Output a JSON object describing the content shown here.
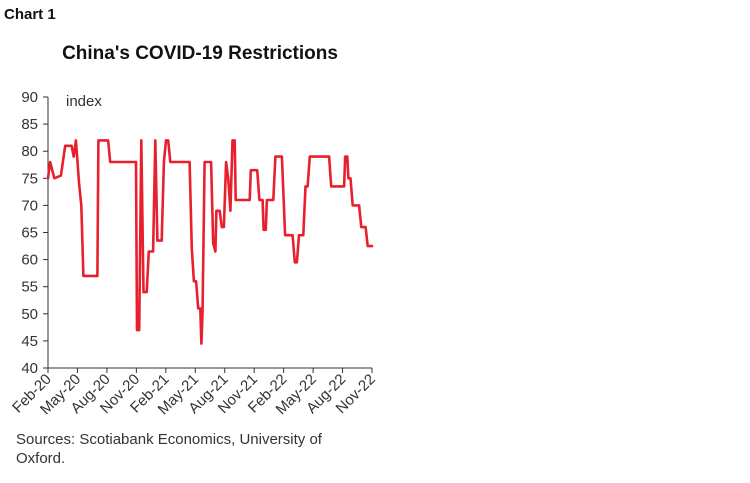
{
  "header": {
    "chart_label": "Chart 1",
    "title": "China's COVID-19 Restrictions"
  },
  "footer": {
    "sources": "Sources: Scotiabank Economics, University of Oxford."
  },
  "colors": {
    "line": "#e8202e",
    "axis": "#333333"
  },
  "chart_data": {
    "type": "line",
    "title": "China's COVID-19 Restrictions",
    "xlabel": "",
    "ylabel": "index",
    "ylim": [
      40,
      90
    ],
    "yticks": [
      40,
      45,
      50,
      55,
      60,
      65,
      70,
      75,
      80,
      85,
      90
    ],
    "x_tick_labels": [
      "Feb-20",
      "May-20",
      "Aug-20",
      "Nov-20",
      "Feb-21",
      "May-21",
      "Aug-21",
      "Nov-21",
      "Feb-22",
      "May-22",
      "Aug-22",
      "Nov-22"
    ],
    "grid": false,
    "series": [
      {
        "values": [
          [
            0,
            75
          ],
          [
            0.1,
            78
          ],
          [
            0.3,
            75
          ],
          [
            0.6,
            75.5
          ],
          [
            0.8,
            81
          ],
          [
            1.1,
            81
          ],
          [
            1.2,
            79
          ],
          [
            1.3,
            82
          ],
          [
            1.45,
            74
          ],
          [
            1.55,
            70
          ],
          [
            1.65,
            57
          ],
          [
            2.3,
            57
          ],
          [
            2.35,
            82
          ],
          [
            2.8,
            82
          ],
          [
            2.9,
            78
          ],
          [
            4.1,
            78
          ],
          [
            4.15,
            47
          ],
          [
            4.25,
            47
          ],
          [
            4.35,
            82
          ],
          [
            4.45,
            54
          ],
          [
            4.6,
            54
          ],
          [
            4.7,
            61.5
          ],
          [
            4.9,
            61.5
          ],
          [
            5.0,
            82
          ],
          [
            5.1,
            63.5
          ],
          [
            5.3,
            63.5
          ],
          [
            5.4,
            78
          ],
          [
            5.5,
            82
          ],
          [
            5.6,
            82
          ],
          [
            5.7,
            78
          ],
          [
            6.6,
            78
          ],
          [
            6.7,
            62
          ],
          [
            6.8,
            56
          ],
          [
            6.9,
            56
          ],
          [
            7.0,
            51
          ],
          [
            7.1,
            51
          ],
          [
            7.15,
            44.5
          ],
          [
            7.2,
            50
          ],
          [
            7.3,
            78
          ],
          [
            7.6,
            78
          ],
          [
            7.7,
            63
          ],
          [
            7.8,
            61.5
          ],
          [
            7.85,
            69
          ],
          [
            8.0,
            69
          ],
          [
            8.1,
            66
          ],
          [
            8.2,
            66
          ],
          [
            8.3,
            78
          ],
          [
            8.4,
            75
          ],
          [
            8.5,
            69
          ],
          [
            8.6,
            82
          ],
          [
            8.7,
            82
          ],
          [
            8.75,
            71
          ],
          [
            9.4,
            71
          ],
          [
            9.45,
            76.5
          ],
          [
            9.75,
            76.5
          ],
          [
            9.85,
            71
          ],
          [
            10.0,
            71
          ],
          [
            10.05,
            65.5
          ],
          [
            10.15,
            65.5
          ],
          [
            10.2,
            71
          ],
          [
            10.5,
            71
          ],
          [
            10.6,
            79
          ],
          [
            10.9,
            79
          ],
          [
            11.05,
            64.5
          ],
          [
            11.4,
            64.5
          ],
          [
            11.5,
            59.5
          ],
          [
            11.6,
            59.5
          ],
          [
            11.7,
            64.5
          ],
          [
            11.9,
            64.5
          ],
          [
            12.0,
            73.5
          ],
          [
            12.1,
            73.5
          ],
          [
            12.2,
            79
          ],
          [
            13.1,
            79
          ],
          [
            13.2,
            73.5
          ],
          [
            13.8,
            73.5
          ],
          [
            13.85,
            79
          ],
          [
            13.95,
            79
          ],
          [
            14.0,
            75
          ],
          [
            14.1,
            75
          ],
          [
            14.2,
            70
          ],
          [
            14.5,
            70
          ],
          [
            14.6,
            66
          ],
          [
            14.8,
            66
          ],
          [
            14.9,
            62.5
          ],
          [
            15.1,
            62.5
          ]
        ]
      }
    ]
  }
}
